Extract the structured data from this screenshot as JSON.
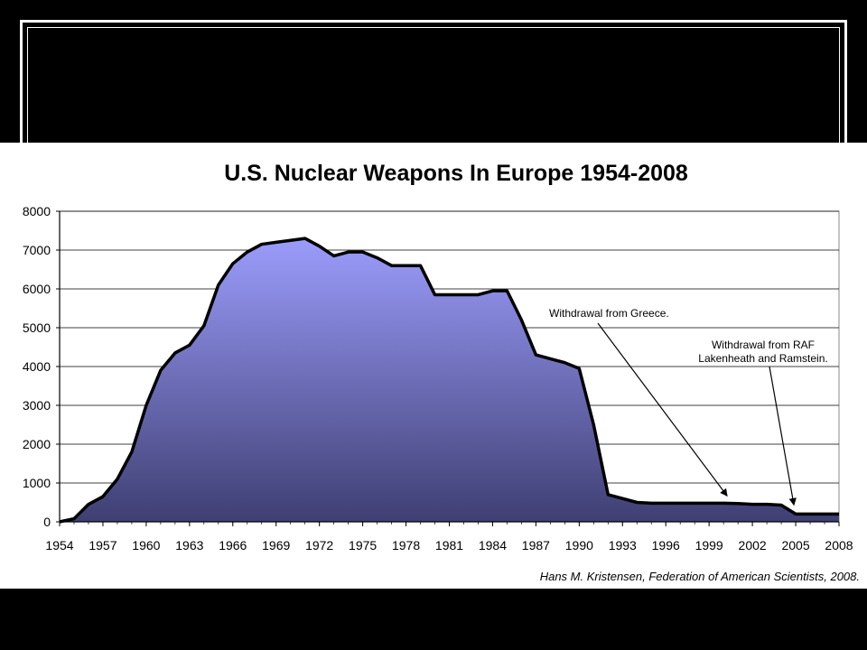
{
  "chart_data": {
    "type": "area",
    "title": "U.S. Nuclear Weapons In Europe 1954-2008",
    "xlabel": "",
    "ylabel": "",
    "xlim": [
      1954,
      2008
    ],
    "ylim": [
      0,
      8000
    ],
    "x_ticks": [
      "1954",
      "1957",
      "1960",
      "1963",
      "1966",
      "1969",
      "1972",
      "1975",
      "1978",
      "1981",
      "1984",
      "1987",
      "1990",
      "1993",
      "1996",
      "1999",
      "2002",
      "2005",
      "2008"
    ],
    "y_ticks": [
      "0",
      "1000",
      "2000",
      "3000",
      "4000",
      "5000",
      "6000",
      "7000",
      "8000"
    ],
    "grid": true,
    "series": [
      {
        "x": [
          1954,
          1955,
          1956,
          1957,
          1958,
          1959,
          1960,
          1961,
          1962,
          1963,
          1964,
          1965,
          1966,
          1967,
          1968,
          1969,
          1970,
          1971,
          1972,
          1973,
          1974,
          1975,
          1976,
          1977,
          1978,
          1979,
          1980,
          1981,
          1982,
          1983,
          1984,
          1985,
          1986,
          1987,
          1988,
          1989,
          1990,
          1991,
          1992,
          1993,
          1994,
          1995,
          1996,
          1997,
          1998,
          1999,
          2000,
          2001,
          2002,
          2003,
          2004,
          2005,
          2006,
          2007,
          2008
        ],
        "y": [
          0,
          80,
          450,
          650,
          1100,
          1800,
          3000,
          3900,
          4350,
          4550,
          5050,
          6100,
          6650,
          6950,
          7150,
          7200,
          7250,
          7300,
          7100,
          6850,
          6950,
          6950,
          6800,
          6600,
          6600,
          6600,
          5850,
          5850,
          5850,
          5850,
          5950,
          5950,
          5200,
          4300,
          4200,
          4100,
          3950,
          2500,
          700,
          600,
          500,
          480,
          480,
          480,
          480,
          480,
          480,
          470,
          450,
          450,
          430,
          200,
          200,
          200,
          200
        ]
      }
    ],
    "colors": {
      "fill_top": "#9b9cfb",
      "fill_bottom": "#3f3f73",
      "line": "#000000"
    },
    "annotations": [
      {
        "text": "Withdrawal from Greece.",
        "point_x": 2000,
        "point_y": 480
      },
      {
        "text": "Withdrawal from RAF Lakenheath and Ramstein.",
        "lines": [
          "Withdrawal from RAF",
          "Lakenheath and Ramstein."
        ],
        "point_x": 2005,
        "point_y": 200
      }
    ],
    "source": "Hans M. Kristensen, Federation of American Scientists, 2008."
  }
}
